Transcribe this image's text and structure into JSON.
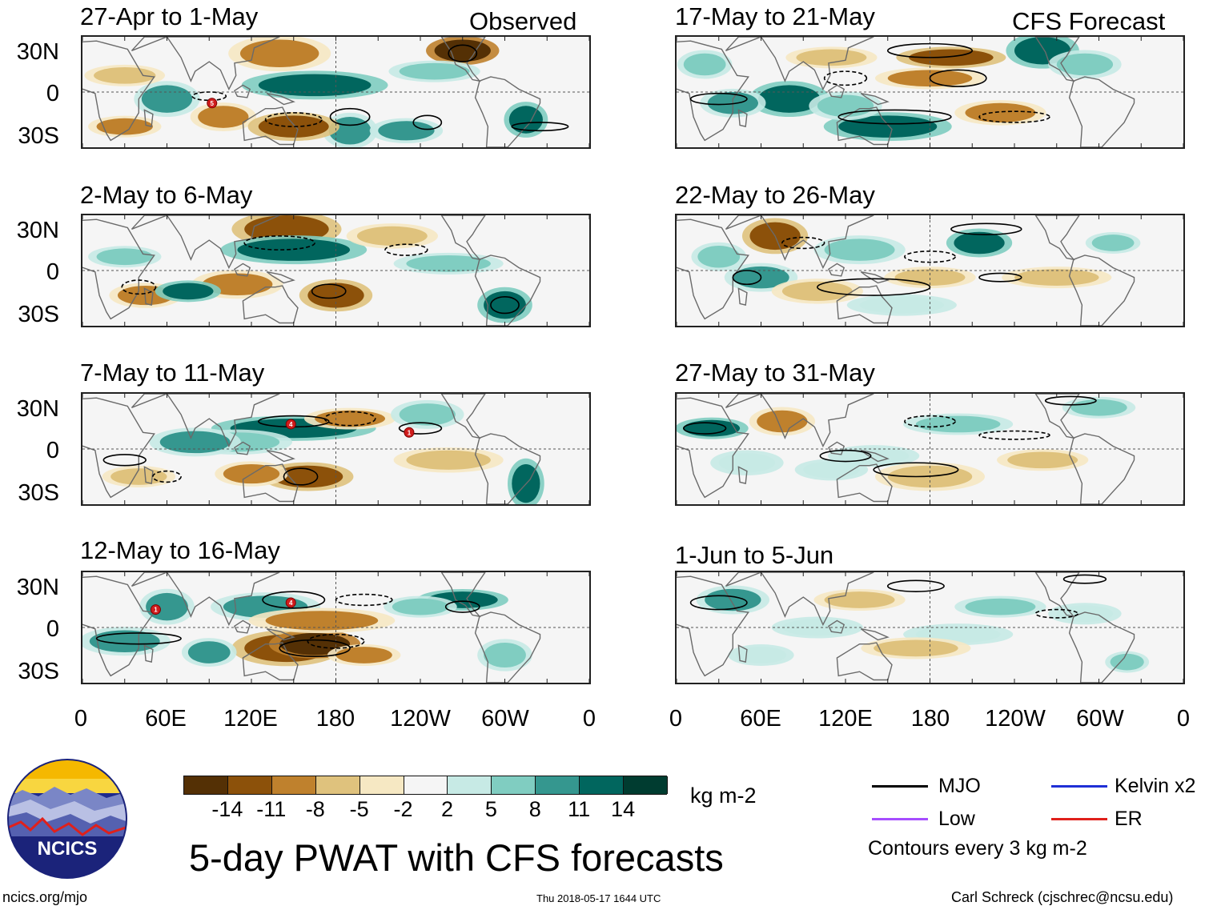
{
  "headers": {
    "observed": "Observed",
    "forecast": "CFS Forecast"
  },
  "panels": [
    {
      "id": "p1",
      "title": "27-Apr to 1-May",
      "group": "observed"
    },
    {
      "id": "p2",
      "title": "2-May to 6-May",
      "group": "observed"
    },
    {
      "id": "p3",
      "title": "7-May to 11-May",
      "group": "observed"
    },
    {
      "id": "p4",
      "title": "12-May to 16-May",
      "group": "observed"
    },
    {
      "id": "p5",
      "title": "17-May to 21-May",
      "group": "forecast"
    },
    {
      "id": "p6",
      "title": "22-May to 26-May",
      "group": "forecast"
    },
    {
      "id": "p7",
      "title": "27-May to 31-May",
      "group": "forecast"
    },
    {
      "id": "p8",
      "title": "1-Jun to 5-Jun",
      "group": "forecast"
    }
  ],
  "lat_labels": [
    "30N",
    "0",
    "30S"
  ],
  "lon_labels": [
    "0",
    "60E",
    "120E",
    "180",
    "120W",
    "60W",
    "0"
  ],
  "storm_markers": [
    {
      "panel": "p1",
      "label": "5"
    },
    {
      "panel": "p3",
      "label": "4"
    },
    {
      "panel": "p3",
      "label": "1"
    },
    {
      "panel": "p4",
      "label": "1"
    },
    {
      "panel": "p4",
      "label": "4"
    }
  ],
  "colorbar": {
    "labels": [
      "-14",
      "-11",
      "-8",
      "-5",
      "-2",
      "2",
      "5",
      "8",
      "11",
      "14"
    ],
    "colors": [
      "#543005",
      "#8c510a",
      "#bf812d",
      "#dfc27d",
      "#f6e8c3",
      "#f5f5f5",
      "#c7eae5",
      "#80cdc1",
      "#35978f",
      "#01665e",
      "#003c30"
    ],
    "units": "kg m-2"
  },
  "legend": {
    "items": [
      {
        "label": "MJO",
        "color": "#000000"
      },
      {
        "label": "Kelvin x2",
        "color": "#1f2fd6"
      },
      {
        "label": "Low",
        "color": "#a64dff"
      },
      {
        "label": "ER",
        "color": "#e0201b"
      }
    ],
    "contour_note": "Contours every 3 kg m-2"
  },
  "logo_text": "NCICS",
  "main_title": "5-day PWAT with CFS forecasts",
  "footer": {
    "url": "ncics.org/mjo",
    "timestamp": "Thu 2018-05-17 1644 UTC",
    "author": "Carl Schreck (cjschrec@ncsu.edu)"
  }
}
